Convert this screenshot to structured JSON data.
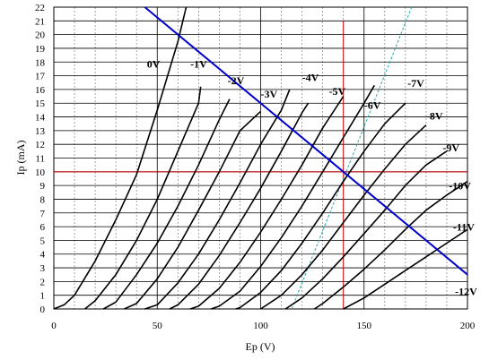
{
  "chart_data": {
    "type": "line",
    "xlabel": "Ep (V)",
    "ylabel": "Ip (mA)",
    "xlim": [
      0,
      200
    ],
    "ylim": [
      0,
      22
    ],
    "x_ticks": [
      "0",
      "50",
      "100",
      "150",
      "200"
    ],
    "y_ticks": [
      "0",
      "1",
      "2",
      "3",
      "4",
      "5",
      "6",
      "7",
      "8",
      "9",
      "10",
      "11",
      "12",
      "13",
      "14",
      "15",
      "16",
      "17",
      "18",
      "19",
      "20",
      "21",
      "22"
    ],
    "grid": true,
    "minor_grid_x_step": 10,
    "colors": {
      "curves": "#000000",
      "load_line": "#0000cc",
      "operating_point": "#cc0000",
      "dashed_line": "#2aa6a6",
      "major_grid": "#000000",
      "minor_grid": "#808080"
    },
    "series": [
      {
        "name": "0V",
        "points": [
          [
            0,
            0
          ],
          [
            5,
            0.3
          ],
          [
            10,
            1
          ],
          [
            20,
            3.5
          ],
          [
            30,
            6.5
          ],
          [
            40,
            9.8
          ],
          [
            50,
            14.5
          ],
          [
            60,
            19.5
          ],
          [
            64,
            22
          ]
        ]
      },
      {
        "name": "-1V",
        "points": [
          [
            15,
            0
          ],
          [
            20,
            0.6
          ],
          [
            30,
            2.5
          ],
          [
            40,
            5
          ],
          [
            50,
            8
          ],
          [
            60,
            11.5
          ],
          [
            70,
            15
          ],
          [
            71,
            16.2
          ]
        ]
      },
      {
        "name": "-2V",
        "points": [
          [
            24,
            0
          ],
          [
            30,
            0.5
          ],
          [
            40,
            2.5
          ],
          [
            50,
            4.8
          ],
          [
            60,
            7.5
          ],
          [
            70,
            10.5
          ],
          [
            80,
            13.8
          ],
          [
            85,
            15.3
          ]
        ]
      },
      {
        "name": "-3V",
        "points": [
          [
            34,
            0
          ],
          [
            40,
            0.4
          ],
          [
            50,
            2.2
          ],
          [
            60,
            4.5
          ],
          [
            70,
            7.2
          ],
          [
            80,
            10
          ],
          [
            90,
            13
          ],
          [
            100,
            14.4
          ]
        ]
      },
      {
        "name": "-4V",
        "points": [
          [
            44,
            0
          ],
          [
            50,
            0.3
          ],
          [
            60,
            1.9
          ],
          [
            70,
            4
          ],
          [
            80,
            6.5
          ],
          [
            90,
            9.2
          ],
          [
            100,
            12
          ],
          [
            110,
            14.5
          ],
          [
            114,
            16
          ]
        ]
      },
      {
        "name": "-5V",
        "points": [
          [
            56,
            0
          ],
          [
            60,
            0.3
          ],
          [
            70,
            1.8
          ],
          [
            80,
            3.9
          ],
          [
            90,
            6.3
          ],
          [
            100,
            8.8
          ],
          [
            110,
            11.5
          ],
          [
            120,
            14.3
          ],
          [
            123,
            15
          ]
        ]
      },
      {
        "name": "-6V",
        "points": [
          [
            66,
            0
          ],
          [
            70,
            0.2
          ],
          [
            80,
            1.5
          ],
          [
            90,
            3.4
          ],
          [
            100,
            5.6
          ],
          [
            110,
            8
          ],
          [
            120,
            10.5
          ],
          [
            130,
            13.2
          ],
          [
            140,
            15.5
          ]
        ]
      },
      {
        "name": "-7V",
        "points": [
          [
            76,
            0
          ],
          [
            80,
            0.2
          ],
          [
            90,
            1.3
          ],
          [
            100,
            3.1
          ],
          [
            110,
            5.2
          ],
          [
            120,
            7.5
          ],
          [
            130,
            10
          ],
          [
            140,
            12.5
          ],
          [
            150,
            15
          ],
          [
            155,
            16.3
          ]
        ]
      },
      {
        "name": "-8V",
        "points": [
          [
            88,
            0
          ],
          [
            90,
            0.1
          ],
          [
            100,
            1.2
          ],
          [
            110,
            2.8
          ],
          [
            120,
            4.8
          ],
          [
            130,
            7
          ],
          [
            140,
            9.3
          ],
          [
            150,
            11.5
          ],
          [
            160,
            13.5
          ],
          [
            170,
            15
          ]
        ]
      },
      {
        "name": "-9V",
        "points": [
          [
            100,
            0
          ],
          [
            110,
            1
          ],
          [
            120,
            2.5
          ],
          [
            130,
            4.3
          ],
          [
            140,
            6.3
          ],
          [
            150,
            8.3
          ],
          [
            160,
            10.2
          ],
          [
            170,
            12
          ],
          [
            180,
            13.4
          ]
        ]
      },
      {
        "name": "-10V",
        "points": [
          [
            112,
            0
          ],
          [
            120,
            0.8
          ],
          [
            130,
            2.2
          ],
          [
            140,
            3.8
          ],
          [
            150,
            5.5
          ],
          [
            160,
            7.2
          ],
          [
            170,
            9
          ],
          [
            180,
            10.5
          ],
          [
            190,
            11.5
          ]
        ]
      },
      {
        "name": "-11V",
        "points": [
          [
            126,
            0
          ],
          [
            130,
            0.4
          ],
          [
            140,
            1.6
          ],
          [
            150,
            2.9
          ],
          [
            160,
            4.3
          ],
          [
            170,
            5.8
          ],
          [
            180,
            7.2
          ],
          [
            190,
            8.3
          ],
          [
            200,
            9.3
          ]
        ]
      },
      {
        "name": "-12V",
        "points": [
          [
            140,
            0
          ],
          [
            150,
            0.8
          ],
          [
            160,
            1.8
          ],
          [
            170,
            2.8
          ],
          [
            180,
            3.8
          ],
          [
            190,
            4.8
          ],
          [
            200,
            5.8
          ]
        ]
      }
    ],
    "label_positions": {
      "0V": [
        45,
        17.6
      ],
      "-1V": [
        66,
        17.6
      ],
      "-2V": [
        84,
        16.4
      ],
      "-3V": [
        100,
        15.4
      ],
      "-4V": [
        120,
        16.6
      ],
      "-5V": [
        133,
        15.6
      ],
      "-6V": [
        150,
        14.6
      ],
      "-7V": [
        171,
        16.2
      ],
      "-8V": [
        180,
        13.8
      ],
      "-9V": [
        188,
        11.5
      ],
      "-10V": [
        191,
        8.7
      ],
      "-11V": [
        193,
        5.7
      ],
      "-12V": [
        194,
        1.0
      ]
    },
    "load_line": {
      "points": [
        [
          44,
          22
        ],
        [
          200,
          2.5
        ]
      ]
    },
    "operating_point": {
      "x": 140,
      "y": 10
    },
    "dashed_line": {
      "points": [
        [
          115,
          0
        ],
        [
          173,
          22
        ]
      ]
    }
  }
}
